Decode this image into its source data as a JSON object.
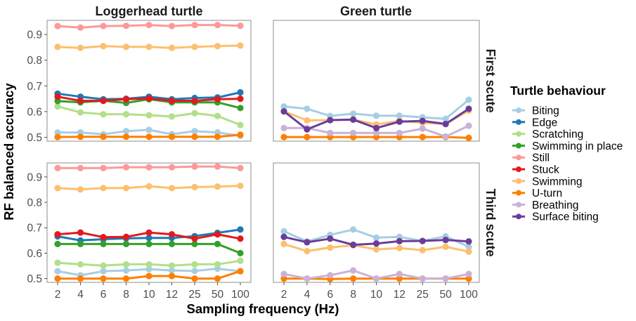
{
  "chart_data": {
    "type": "line",
    "xlabel": "Sampling frequency (Hz)",
    "ylabel": "RF balanced accuracy",
    "x": [
      "2",
      "4",
      "6",
      "8",
      "10",
      "12",
      "25",
      "50",
      "100"
    ],
    "ylim": [
      0.485,
      0.955
    ],
    "yticks": [
      "0.5",
      "0.6",
      "0.7",
      "0.8",
      "0.9"
    ],
    "grid": false,
    "column_facets": [
      "Loggerhead turtle",
      "Green turtle"
    ],
    "row_facets": [
      "First scute",
      "Third scute"
    ],
    "legend": {
      "title": "Turtle behaviour",
      "position": "right",
      "entries": [
        {
          "name": "Biting",
          "color": "#A6CEE3"
        },
        {
          "name": "Edge",
          "color": "#1F78B4"
        },
        {
          "name": "Scratching",
          "color": "#B2DF8A"
        },
        {
          "name": "Swimming in place",
          "color": "#33A02C"
        },
        {
          "name": "Still",
          "color": "#FB9A99"
        },
        {
          "name": "Stuck",
          "color": "#E31A1C"
        },
        {
          "name": "Swimming",
          "color": "#FDBF6F"
        },
        {
          "name": "U-turn",
          "color": "#FF7F00"
        },
        {
          "name": "Breathing",
          "color": "#CAB2D6"
        },
        {
          "name": "Surface biting",
          "color": "#6A3D9A"
        }
      ]
    },
    "panels": [
      {
        "species": "Loggerhead turtle",
        "position": "First scute",
        "series": [
          {
            "name": "Biting",
            "values": [
              0.519,
              0.519,
              0.512,
              0.524,
              0.529,
              0.512,
              0.524,
              0.519,
              0.506
            ]
          },
          {
            "name": "Edge",
            "values": [
              0.67,
              0.658,
              0.648,
              0.65,
              0.658,
              0.648,
              0.653,
              0.655,
              0.675
            ]
          },
          {
            "name": "Scratching",
            "values": [
              0.62,
              0.597,
              0.59,
              0.59,
              0.586,
              0.581,
              0.594,
              0.583,
              0.548
            ]
          },
          {
            "name": "Swimming in place",
            "values": [
              0.641,
              0.636,
              0.642,
              0.634,
              0.648,
              0.636,
              0.636,
              0.636,
              0.614
            ]
          },
          {
            "name": "Still",
            "values": [
              0.933,
              0.927,
              0.933,
              0.934,
              0.937,
              0.933,
              0.937,
              0.937,
              0.934
            ]
          },
          {
            "name": "Stuck",
            "values": [
              0.658,
              0.642,
              0.642,
              0.648,
              0.651,
              0.642,
              0.642,
              0.648,
              0.65
            ]
          },
          {
            "name": "Swimming",
            "values": [
              0.852,
              0.848,
              0.855,
              0.852,
              0.852,
              0.848,
              0.852,
              0.855,
              0.857
            ]
          },
          {
            "name": "U-turn",
            "values": [
              0.501,
              0.502,
              0.502,
              0.502,
              0.502,
              0.502,
              0.502,
              0.502,
              0.51
            ]
          }
        ]
      },
      {
        "species": "Green turtle",
        "position": "First scute",
        "series": [
          {
            "name": "Biting",
            "values": [
              0.62,
              0.611,
              0.583,
              0.592,
              0.584,
              0.584,
              0.578,
              0.572,
              0.646
            ]
          },
          {
            "name": "Swimming",
            "values": [
              0.601,
              0.566,
              0.567,
              0.569,
              0.55,
              0.564,
              0.557,
              0.552,
              0.604
            ]
          },
          {
            "name": "U-turn",
            "values": [
              0.501,
              0.501,
              0.501,
              0.501,
              0.501,
              0.501,
              0.501,
              0.501,
              0.498
            ]
          },
          {
            "name": "Breathing",
            "values": [
              0.536,
              0.536,
              0.517,
              0.517,
              0.517,
              0.517,
              0.534,
              0.503,
              0.545
            ]
          },
          {
            "name": "Surface biting",
            "values": [
              0.601,
              0.531,
              0.567,
              0.569,
              0.536,
              0.561,
              0.564,
              0.552,
              0.611
            ]
          }
        ]
      },
      {
        "species": "Loggerhead turtle",
        "position": "Third scute",
        "series": [
          {
            "name": "Biting",
            "values": [
              0.529,
              0.513,
              0.529,
              0.532,
              0.537,
              0.532,
              0.53,
              0.539,
              0.529
            ]
          },
          {
            "name": "Edge",
            "values": [
              0.666,
              0.65,
              0.655,
              0.658,
              0.66,
              0.66,
              0.667,
              0.68,
              0.693
            ]
          },
          {
            "name": "Scratching",
            "values": [
              0.562,
              0.556,
              0.551,
              0.556,
              0.556,
              0.551,
              0.556,
              0.556,
              0.57
            ]
          },
          {
            "name": "Swimming in place",
            "values": [
              0.636,
              0.636,
              0.636,
              0.636,
              0.636,
              0.636,
              0.636,
              0.636,
              0.6
            ]
          },
          {
            "name": "Still",
            "values": [
              0.935,
              0.935,
              0.935,
              0.938,
              0.938,
              0.938,
              0.941,
              0.941,
              0.935
            ]
          },
          {
            "name": "Stuck",
            "values": [
              0.674,
              0.681,
              0.663,
              0.664,
              0.681,
              0.674,
              0.657,
              0.674,
              0.657
            ]
          },
          {
            "name": "Swimming",
            "values": [
              0.856,
              0.851,
              0.856,
              0.856,
              0.863,
              0.856,
              0.86,
              0.862,
              0.865
            ]
          },
          {
            "name": "U-turn",
            "values": [
              0.5,
              0.5,
              0.5,
              0.5,
              0.51,
              0.51,
              0.5,
              0.5,
              0.529
            ]
          }
        ]
      },
      {
        "species": "Green turtle",
        "position": "Third scute",
        "series": [
          {
            "name": "Biting",
            "values": [
              0.686,
              0.646,
              0.672,
              0.693,
              0.661,
              0.664,
              0.648,
              0.666,
              0.625
            ]
          },
          {
            "name": "Swimming",
            "values": [
              0.636,
              0.608,
              0.622,
              0.631,
              0.615,
              0.62,
              0.612,
              0.625,
              0.606
            ]
          },
          {
            "name": "U-turn",
            "values": [
              0.5,
              0.5,
              0.498,
              0.5,
              0.5,
              0.5,
              0.5,
              0.5,
              0.5
            ]
          },
          {
            "name": "Breathing",
            "values": [
              0.518,
              0.5,
              0.513,
              0.532,
              0.5,
              0.518,
              0.5,
              0.5,
              0.518
            ]
          },
          {
            "name": "Surface biting",
            "values": [
              0.664,
              0.643,
              0.657,
              0.633,
              0.638,
              0.647,
              0.648,
              0.652,
              0.646
            ]
          }
        ]
      }
    ]
  }
}
